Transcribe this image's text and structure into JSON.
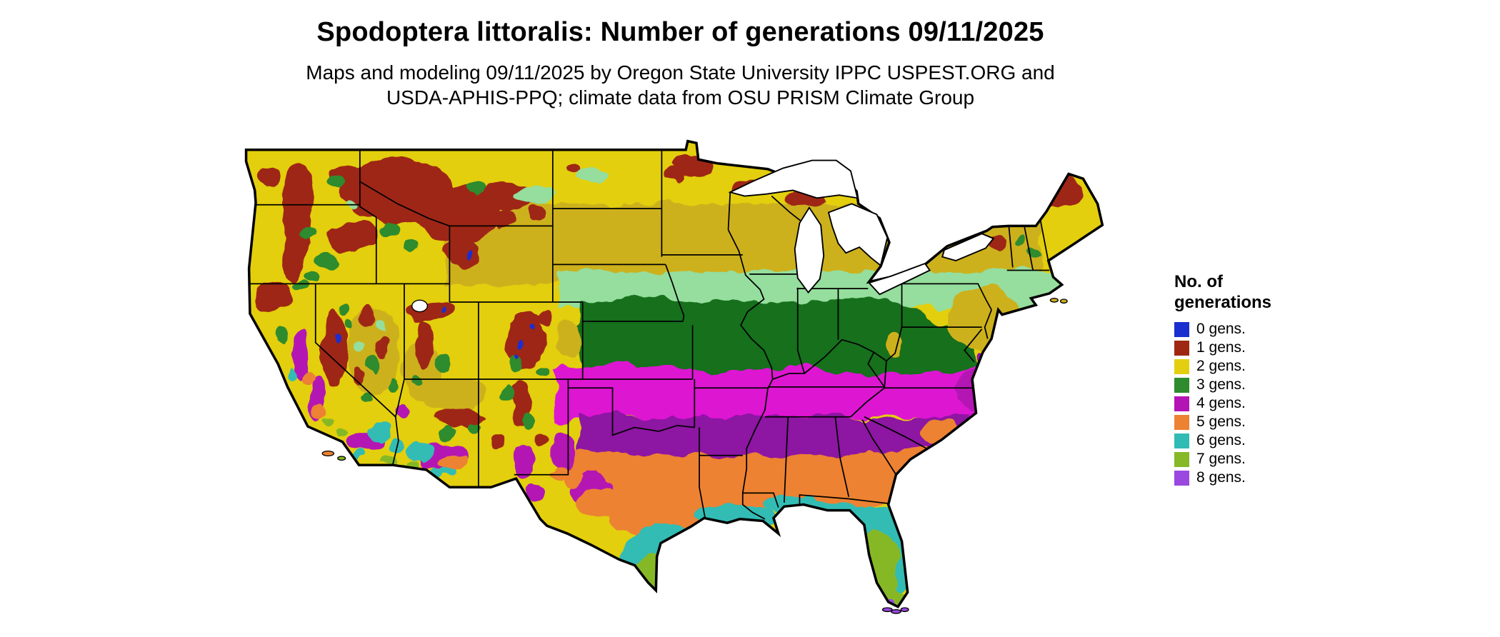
{
  "title": "Spodoptera littoralis: Number of generations 09/11/2025",
  "subtitle": {
    "lines": [
      "Maps and modeling 09/11/2025 by Oregon State University IPPC USPEST.ORG and",
      "USDA-APHIS-PPQ; climate data from OSU PRISM Climate Group"
    ]
  },
  "legend": {
    "title_line1": "No. of",
    "title_line2": "generations",
    "items": [
      {
        "label": "0 gens.",
        "color": "#1b2ecf"
      },
      {
        "label": "1 gens.",
        "color": "#9e2812"
      },
      {
        "label": "2 gens.",
        "color": "#e3cf10"
      },
      {
        "label": "3 gens.",
        "color": "#2e8b2e"
      },
      {
        "label": "4 gens.",
        "color": "#b414b4"
      },
      {
        "label": "5 gens.",
        "color": "#ed8233"
      },
      {
        "label": "6 gens.",
        "color": "#30bcb4"
      },
      {
        "label": "7 gens.",
        "color": "#86b828"
      },
      {
        "label": "8 gens.",
        "color": "#9a48e0"
      }
    ]
  },
  "chart_data": {
    "type": "map",
    "map_kind": "raster choropleth of continental United States",
    "variable": "Number of generations of Spodoptera littoralis",
    "date": "09/11/2025",
    "classes": [
      "0 gens.",
      "1 gens.",
      "2 gens.",
      "3 gens.",
      "4 gens.",
      "5 gens.",
      "6 gens.",
      "7 gens.",
      "8 gens."
    ],
    "class_colors": [
      "#1b2ecf",
      "#9e2812",
      "#e3cf10",
      "#2e8b2e",
      "#b414b4",
      "#ed8233",
      "#30bcb4",
      "#86b828",
      "#9a48e0"
    ],
    "spatial_pattern": [
      {
        "generations": 2,
        "areas": "Northern tier: Pacific Northwest basins, northern Plains, Great Lakes, New England"
      },
      {
        "generations": 1,
        "areas": "High mountains of Cascades, Sierra Nevada, Rockies; northern Minnesota/Wisconsin/Michigan; northern Maine"
      },
      {
        "generations": 0,
        "areas": "Isolated highest-elevation pockets in Wyoming/Colorado Rockies and Sierra crest"
      },
      {
        "generations": 3,
        "areas": "Central band from Nebraska/Kansas through Missouri, Ohio Valley to Virginia; mountain flanks in the West"
      },
      {
        "generations": 4,
        "areas": "Southern Plains and mid-South: Oklahoma, Arkansas, Tennessee, Carolinas; California Central Valley; southern Arizona/New Mexico"
      },
      {
        "generations": 5,
        "areas": "Deep South interior: central Texas, Gulf states, Georgia; desert Southwest lowlands"
      },
      {
        "generations": 6,
        "areas": "Gulf Coast of Texas/Louisiana, northern Florida; low deserts of SE California/SW Arizona"
      },
      {
        "generations": 7,
        "areas": "Florida peninsula, far southern Texas, Imperial/Yuma valleys, southern California coast"
      },
      {
        "generations": 8,
        "areas": "Florida Keys / southern tip of Florida and Brownsville-area specks"
      }
    ]
  }
}
